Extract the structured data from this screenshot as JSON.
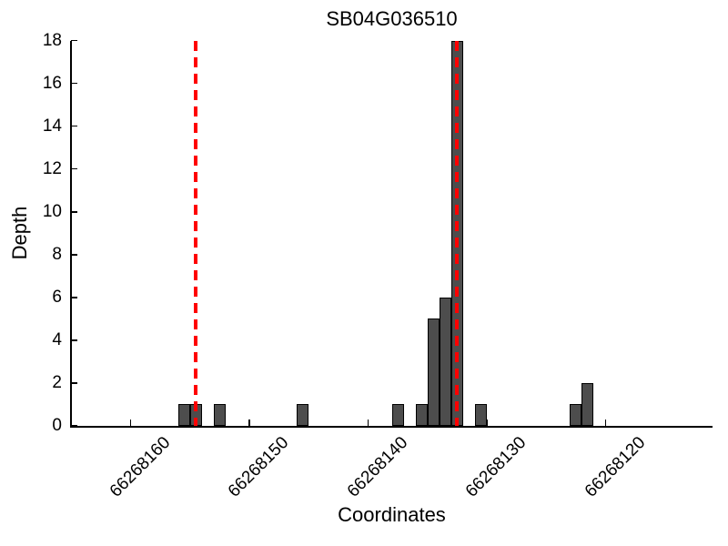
{
  "chart_data": {
    "type": "bar",
    "title": "SB04G036510",
    "xlabel": "Coordinates",
    "ylabel": "Depth",
    "x_axis_reversed": true,
    "xlim": [
      66268165,
      66268111
    ],
    "ylim": [
      0,
      18
    ],
    "x_ticks": [
      66268160,
      66268150,
      66268140,
      66268130,
      66268120
    ],
    "y_ticks": [
      0,
      2,
      4,
      6,
      8,
      10,
      12,
      14,
      16,
      18
    ],
    "grid": false,
    "legend": "none",
    "bin_width": 1,
    "bar_color": "#4d4d4d",
    "bar_edge_color": "#000000",
    "bars": [
      {
        "coord": 66268155,
        "depth": 1
      },
      {
        "coord": 66268154,
        "depth": 1
      },
      {
        "coord": 66268152,
        "depth": 1
      },
      {
        "coord": 66268145,
        "depth": 1
      },
      {
        "coord": 66268137,
        "depth": 1
      },
      {
        "coord": 66268135,
        "depth": 1
      },
      {
        "coord": 66268134,
        "depth": 5
      },
      {
        "coord": 66268133,
        "depth": 6
      },
      {
        "coord": 66268132,
        "depth": 18
      },
      {
        "coord": 66268130,
        "depth": 1
      },
      {
        "coord": 66268122,
        "depth": 1
      },
      {
        "coord": 66268121,
        "depth": 2
      }
    ],
    "vlines": {
      "positions": [
        66268154.5,
        66268132.5
      ],
      "color": "#ff0000",
      "style": "dashed"
    }
  }
}
